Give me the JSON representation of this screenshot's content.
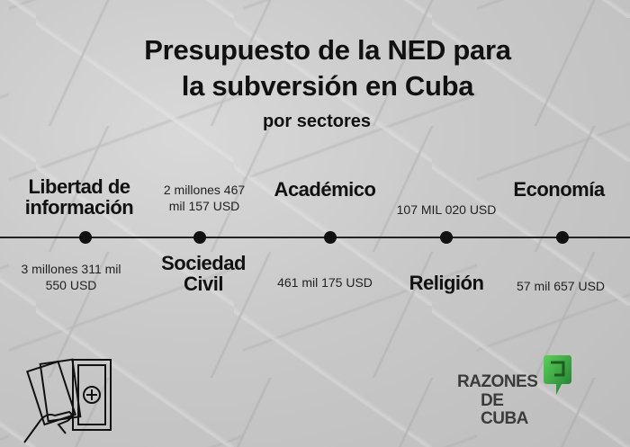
{
  "title": {
    "line1": "Presupuesto de la NED para",
    "line2": "la subversión en Cuba",
    "subtitle": "por sectores"
  },
  "sectors": [
    {
      "name_line1": "Libertad de",
      "name_line2": "información",
      "amount_line1": "3 millones 311 mil",
      "amount_line2": "550 USD"
    },
    {
      "name_line1": "Sociedad",
      "name_line2": "Civil",
      "amount_line1": "2 millones 467",
      "amount_line2": "mil 157 USD"
    },
    {
      "name_line1": "Académico",
      "amount_line1": "461 mil 175 USD"
    },
    {
      "name_line1": "Religión",
      "amount_line1": "107 MIL 020 USD"
    },
    {
      "name_line1": "Economía",
      "amount_line1": "57 mil 657 USD"
    }
  ],
  "logo": {
    "line1": "RAZONES",
    "line2": "DE CUBA",
    "color": "#2e9e3e"
  },
  "icons": {
    "money": "money-hand-icon"
  }
}
